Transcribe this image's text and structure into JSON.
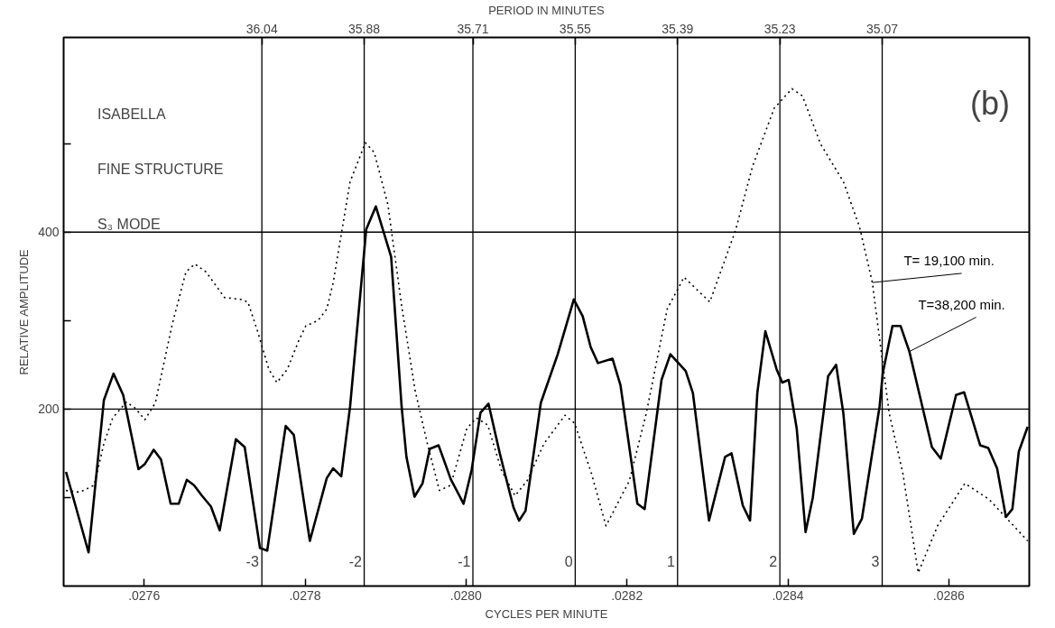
{
  "chart_data": {
    "type": "line",
    "xlabel": "CYCLES PER MINUTE",
    "ylabel": "RELATIVE AMPLITUDE",
    "x2label": "PERIOD IN MINUTES",
    "annotations": [
      "ISABELLA",
      "FINE STRUCTURE",
      "S₃ MODE",
      "(b)",
      {
        "text": "-3",
        "x": 0.027746,
        "y": 28
      },
      {
        "text": "-2",
        "x": 0.027874,
        "y": 28
      },
      {
        "text": "-1",
        "x": 0.028009,
        "y": 28
      },
      {
        "text": "0",
        "x": 0.028136,
        "y": 28
      },
      {
        "text": "1",
        "x": 0.028263,
        "y": 28
      },
      {
        "text": "2",
        "x": 0.02839,
        "y": 28
      },
      {
        "text": "3",
        "x": 0.028517,
        "y": 28
      }
    ],
    "xlim": [
      0.0275,
      0.0287
    ],
    "ylim": [
      0,
      620
    ],
    "x2lim": [
      36.35,
      34.84
    ],
    "xticks": [
      {
        "value": 0.0276,
        "label": ".0276"
      },
      {
        "value": 0.0278,
        "label": ".0278"
      },
      {
        "value": 0.028,
        "label": ".0280"
      },
      {
        "value": 0.0282,
        "label": ".0282"
      },
      {
        "value": 0.0284,
        "label": ".0284"
      },
      {
        "value": 0.0286,
        "label": ".0286"
      }
    ],
    "x2ticks": [
      36.04,
      35.88,
      35.71,
      35.55,
      35.39,
      35.23,
      35.07
    ],
    "yticks": [
      {
        "value": 100,
        "label": null
      },
      200,
      {
        "value": 300,
        "label": null
      },
      400,
      {
        "value": 500,
        "label": null
      }
    ],
    "ref_lines": [
      {
        "axis": "y",
        "value": 200,
        "label": null
      },
      {
        "axis": "y",
        "value": 400,
        "label": null
      },
      {
        "axis": "x2",
        "value": 36.04,
        "label": null
      },
      {
        "axis": "x2",
        "value": 35.88,
        "label": null
      },
      {
        "axis": "x2",
        "value": 35.71,
        "label": null
      },
      {
        "axis": "x2",
        "value": 35.55,
        "label": null
      },
      {
        "axis": "x2",
        "value": 35.39,
        "label": null
      },
      {
        "axis": "x2",
        "value": 35.23,
        "label": null
      },
      {
        "axis": "x2",
        "value": 35.07,
        "label": null
      }
    ],
    "grid": false,
    "series": [
      {
        "name": "T= 19,100 min.",
        "color": "#000000",
        "line_style": "dotted",
        "x": [
          0.027503,
          0.02752,
          0.027538,
          0.02755,
          0.027561,
          0.027578,
          0.027589,
          0.027601,
          0.027614,
          0.027635,
          0.027652,
          0.027663,
          0.027677,
          0.0277,
          0.02772,
          0.027729,
          0.027741,
          0.027755,
          0.027765,
          0.027778,
          0.027792,
          0.027801,
          0.027816,
          0.027827,
          0.027835,
          0.027856,
          0.027875,
          0.027886,
          0.027903,
          0.02792,
          0.027937,
          0.027952,
          0.027967,
          0.027981,
          0.028001,
          0.028013,
          0.028027,
          0.028044,
          0.028061,
          0.028076,
          0.028097,
          0.028123,
          0.028135,
          0.028156,
          0.028174,
          0.028203,
          0.028224,
          0.02825,
          0.028271,
          0.028303,
          0.028335,
          0.028356,
          0.028383,
          0.028405,
          0.028418,
          0.028441,
          0.028469,
          0.028489,
          0.028505,
          0.028514,
          0.028526,
          0.028543,
          0.028562,
          0.028586,
          0.02862,
          0.02865,
          0.028698
        ],
        "values": [
          108,
          106,
          114,
          161,
          190,
          208,
          201,
          188,
          207,
          296,
          355,
          364,
          355,
          326,
          324,
          321,
          288,
          245,
          230,
          245,
          277,
          294,
          300,
          313,
          343,
          457,
          501,
          490,
          431,
          317,
          220,
          161,
          108,
          114,
          178,
          190,
          182,
          131,
          102,
          119,
          161,
          193,
          184,
          127,
          68,
          119,
          195,
          313,
          349,
          321,
          402,
          474,
          540,
          562,
          554,
          499,
          457,
          406,
          343,
          279,
          195,
          127,
          15,
          68,
          116,
          98,
          51
        ]
      },
      {
        "name": "T=38,200 min.",
        "color": "#000000",
        "line_style": "solid",
        "x": [
          0.027503,
          0.027531,
          0.02755,
          0.027562,
          0.027574,
          0.027593,
          0.027601,
          0.027612,
          0.027621,
          0.027633,
          0.027643,
          0.027653,
          0.027662,
          0.027672,
          0.027683,
          0.027694,
          0.027714,
          0.027725,
          0.027744,
          0.027753,
          0.027776,
          0.027786,
          0.027806,
          0.027827,
          0.027835,
          0.027845,
          0.027856,
          0.027876,
          0.027888,
          0.027907,
          0.02792,
          0.027926,
          0.027936,
          0.027946,
          0.027955,
          0.027966,
          0.027981,
          0.027997,
          0.028007,
          0.028018,
          0.028028,
          0.028042,
          0.028059,
          0.028066,
          0.028074,
          0.028093,
          0.028114,
          0.028134,
          0.028145,
          0.028155,
          0.028164,
          0.028182,
          0.028192,
          0.028213,
          0.028222,
          0.028243,
          0.028254,
          0.028273,
          0.028282,
          0.028302,
          0.028322,
          0.02833,
          0.028344,
          0.028353,
          0.028362,
          0.028372,
          0.028386,
          0.028393,
          0.028401,
          0.028411,
          0.028422,
          0.028431,
          0.02845,
          0.02846,
          0.028469,
          0.028482,
          0.028492,
          0.028514,
          0.028518,
          0.02853,
          0.02854,
          0.028551,
          0.028579,
          0.02859,
          0.028609,
          0.028619,
          0.028639,
          0.028649,
          0.02866,
          0.028671,
          0.028679,
          0.028687,
          0.028698
        ],
        "values": [
          129,
          38,
          210,
          240,
          216,
          132,
          138,
          154,
          143,
          93,
          93,
          120,
          114,
          102,
          90,
          63,
          166,
          157,
          43,
          40,
          181,
          171,
          51,
          122,
          133,
          124,
          203,
          403,
          429,
          372,
          203,
          146,
          101,
          116,
          155,
          159,
          121,
          93,
          131,
          196,
          206,
          150,
          89,
          74,
          85,
          207,
          262,
          324,
          305,
          270,
          252,
          257,
          227,
          93,
          87,
          233,
          262,
          243,
          218,
          74,
          146,
          150,
          91,
          74,
          218,
          288,
          245,
          230,
          233,
          178,
          61,
          100,
          237,
          250,
          195,
          59,
          76,
          203,
          241,
          294,
          294,
          265,
          157,
          144,
          216,
          219,
          159,
          156,
          133,
          78,
          87,
          152,
          180
        ]
      }
    ]
  }
}
